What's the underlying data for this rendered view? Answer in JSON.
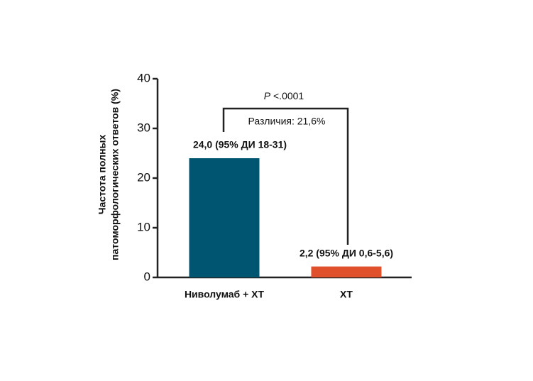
{
  "chart_data": {
    "type": "bar",
    "ylabel": [
      "Частота полных",
      "патоморфологических ответов (%)"
    ],
    "categories": [
      "Ниволумаб + ХТ",
      "ХТ"
    ],
    "values": [
      24.0,
      2.2
    ],
    "value_labels": [
      "24,0 (95% ДИ 18-31)",
      "2,2 (95% ДИ 0,6-5,6)"
    ],
    "colors": [
      "#005670",
      "#e0502a"
    ],
    "ylim": [
      0,
      40
    ],
    "yticks": [
      0,
      10,
      20,
      30,
      40
    ],
    "significance": {
      "symbol": "P",
      "value": "<.0001"
    },
    "difference": "Различия: 21,6%"
  }
}
